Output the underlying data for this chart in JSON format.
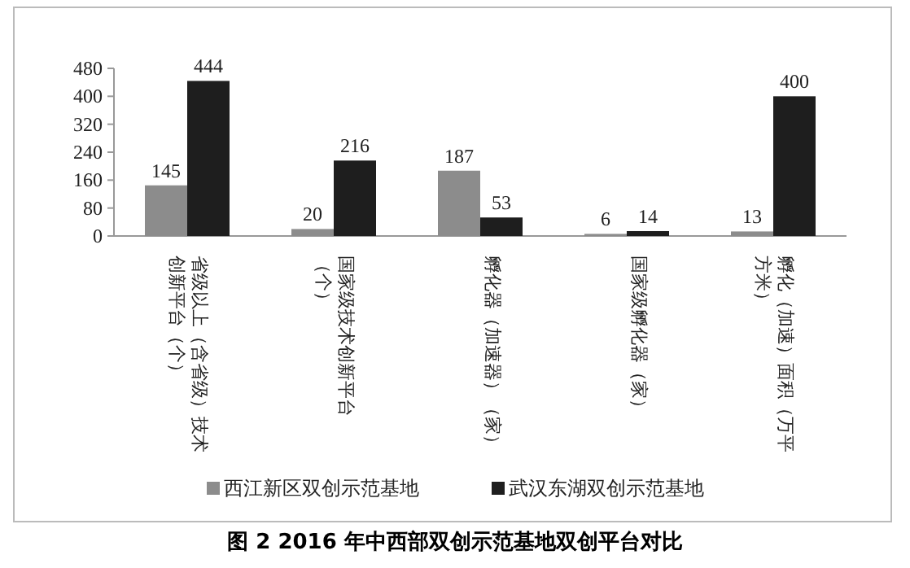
{
  "chart_data": {
    "type": "bar",
    "title": "图 2 2016 年中西部双创示范基地双创平台对比",
    "categories": [
      "省级以上（含省级）技术创新平台（个）",
      "国家级技术创新平台（个）",
      "孵化器（加速器）（家）",
      "国家级孵化器（家）",
      "孵化（加速）面积（万平方米）"
    ],
    "series": [
      {
        "name": "西江新区双创示范基地",
        "color": "#8c8c8c",
        "values": [
          145,
          20,
          187,
          6,
          13
        ]
      },
      {
        "name": "武汉东湖双创示范基地",
        "color": "#1e1e1e",
        "values": [
          444,
          216,
          53,
          14,
          400
        ]
      }
    ],
    "ylim": [
      0,
      480
    ],
    "yticks": [
      0,
      80,
      160,
      240,
      320,
      400,
      480
    ],
    "data_labels": true,
    "legend": "bottom"
  }
}
